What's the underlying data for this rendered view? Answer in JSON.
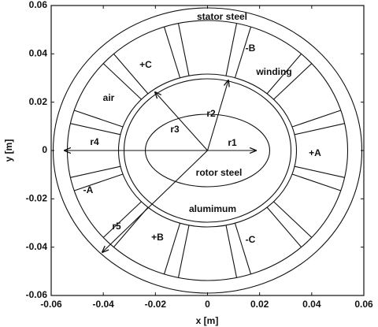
{
  "chart_data": {
    "type": "diagram",
    "xlabel": "x [m]",
    "ylabel": "y [m]",
    "xlim": [
      -0.06,
      0.06
    ],
    "ylim": [
      -0.06,
      0.06
    ],
    "xticks": [
      -0.06,
      -0.04,
      -0.02,
      0,
      0.02,
      0.04,
      0.06
    ],
    "yticks": [
      -0.06,
      -0.04,
      -0.02,
      0,
      0.02,
      0.04,
      0.06
    ],
    "annotations": [
      "stator steel",
      "-B",
      "winding",
      "+C",
      "air",
      "r2",
      "r3",
      "r1",
      "r4",
      "+A",
      "-A",
      "rotor steel",
      "alumimum",
      "r5",
      "+B",
      "-C"
    ]
  }
}
